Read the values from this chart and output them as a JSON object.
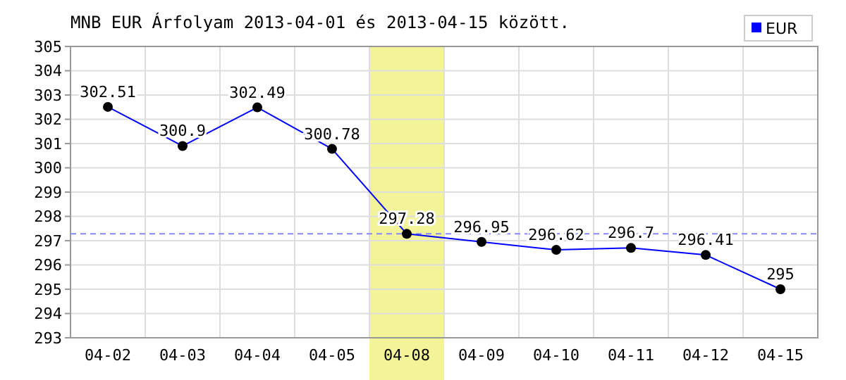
{
  "chart_data": {
    "type": "line",
    "title": "MNB EUR Árfolyam 2013-04-01 és 2013-04-15 között.",
    "categories": [
      "04-02",
      "04-03",
      "04-04",
      "04-05",
      "04-08",
      "04-09",
      "04-10",
      "04-11",
      "04-12",
      "04-15"
    ],
    "series": [
      {
        "name": "EUR",
        "color": "#0000ff",
        "values": [
          302.51,
          300.9,
          302.49,
          300.78,
          297.28,
          296.95,
          296.62,
          296.7,
          296.41,
          295
        ]
      }
    ],
    "ylim": [
      293,
      305
    ],
    "yticks": [
      293,
      294,
      295,
      296,
      297,
      298,
      299,
      300,
      301,
      302,
      303,
      304,
      305
    ],
    "grid": true,
    "legend": "top right",
    "marker": "circle",
    "line_style": "solid",
    "data_labels": true,
    "ref_lines": [
      {
        "axis": "y",
        "value": 297.28,
        "color": "#8888ff",
        "line_style": "dashed"
      }
    ],
    "bands": [
      {
        "axis": "x",
        "from": "04-08",
        "to": "04-08",
        "color": "#f0f080"
      }
    ]
  }
}
